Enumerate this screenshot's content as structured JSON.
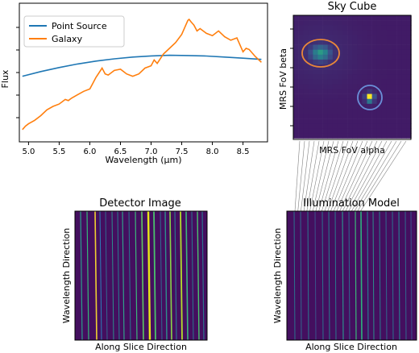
{
  "spectrum": {
    "chart_data": {
      "type": "line",
      "xlabel": "Wavelength (μm)",
      "ylabel": "Flux",
      "xlim": [
        4.85,
        8.9
      ],
      "ylim": [
        0,
        1
      ],
      "xticks": [
        "5.0",
        "5.5",
        "6.0",
        "6.5",
        "7.0",
        "7.5",
        "8.0",
        "8.5"
      ],
      "legend_position": "top-left",
      "series": [
        {
          "name": "Point Source",
          "color": "#1f77b4",
          "x": [
            4.9,
            5.2,
            5.5,
            5.8,
            6.1,
            6.4,
            6.7,
            7.0,
            7.3,
            7.6,
            7.9,
            8.2,
            8.5,
            8.8
          ],
          "y": [
            0.51,
            0.55,
            0.585,
            0.615,
            0.64,
            0.66,
            0.675,
            0.685,
            0.69,
            0.688,
            0.684,
            0.675,
            0.665,
            0.655
          ]
        },
        {
          "name": "Galaxy",
          "color": "#ff7f0e",
          "x": [
            4.9,
            4.95,
            5.0,
            5.1,
            5.2,
            5.3,
            5.4,
            5.5,
            5.55,
            5.6,
            5.65,
            5.7,
            5.8,
            5.9,
            6.0,
            6.05,
            6.1,
            6.2,
            6.25,
            6.3,
            6.4,
            6.5,
            6.55,
            6.6,
            6.7,
            6.8,
            6.9,
            7.0,
            7.05,
            7.1,
            7.2,
            7.3,
            7.4,
            7.5,
            7.55,
            7.6,
            7.62,
            7.65,
            7.7,
            7.75,
            7.8,
            7.9,
            8.0,
            8.1,
            8.2,
            8.3,
            8.4,
            8.5,
            8.55,
            8.6,
            8.7,
            8.8
          ],
          "y": [
            0.05,
            0.08,
            0.1,
            0.13,
            0.17,
            0.22,
            0.25,
            0.27,
            0.29,
            0.31,
            0.3,
            0.32,
            0.35,
            0.38,
            0.4,
            0.45,
            0.5,
            0.58,
            0.53,
            0.52,
            0.56,
            0.57,
            0.55,
            0.53,
            0.51,
            0.53,
            0.58,
            0.6,
            0.65,
            0.62,
            0.7,
            0.75,
            0.8,
            0.87,
            0.93,
            0.99,
            1.0,
            0.98,
            0.95,
            0.9,
            0.92,
            0.88,
            0.86,
            0.9,
            0.85,
            0.82,
            0.84,
            0.72,
            0.75,
            0.74,
            0.68,
            0.63
          ]
        }
      ]
    }
  },
  "sky_cube": {
    "title": "Sky Cube",
    "xlabel": "MRS FoV alpha",
    "ylabel": "MRS FoV beta",
    "galaxy_ring_color": "#e8873a",
    "point_ring_color": "#6a8fd8"
  },
  "detector": {
    "title": "Detector Image",
    "xlabel": "Along Slice Direction",
    "ylabel": "Wavelength Direction"
  },
  "illumination": {
    "title": "Illumination Model",
    "xlabel": "Along Slice Direction",
    "ylabel": "Wavelength Direction"
  },
  "colors": {
    "background_map": "#440f5f",
    "line_color": "#808080"
  }
}
